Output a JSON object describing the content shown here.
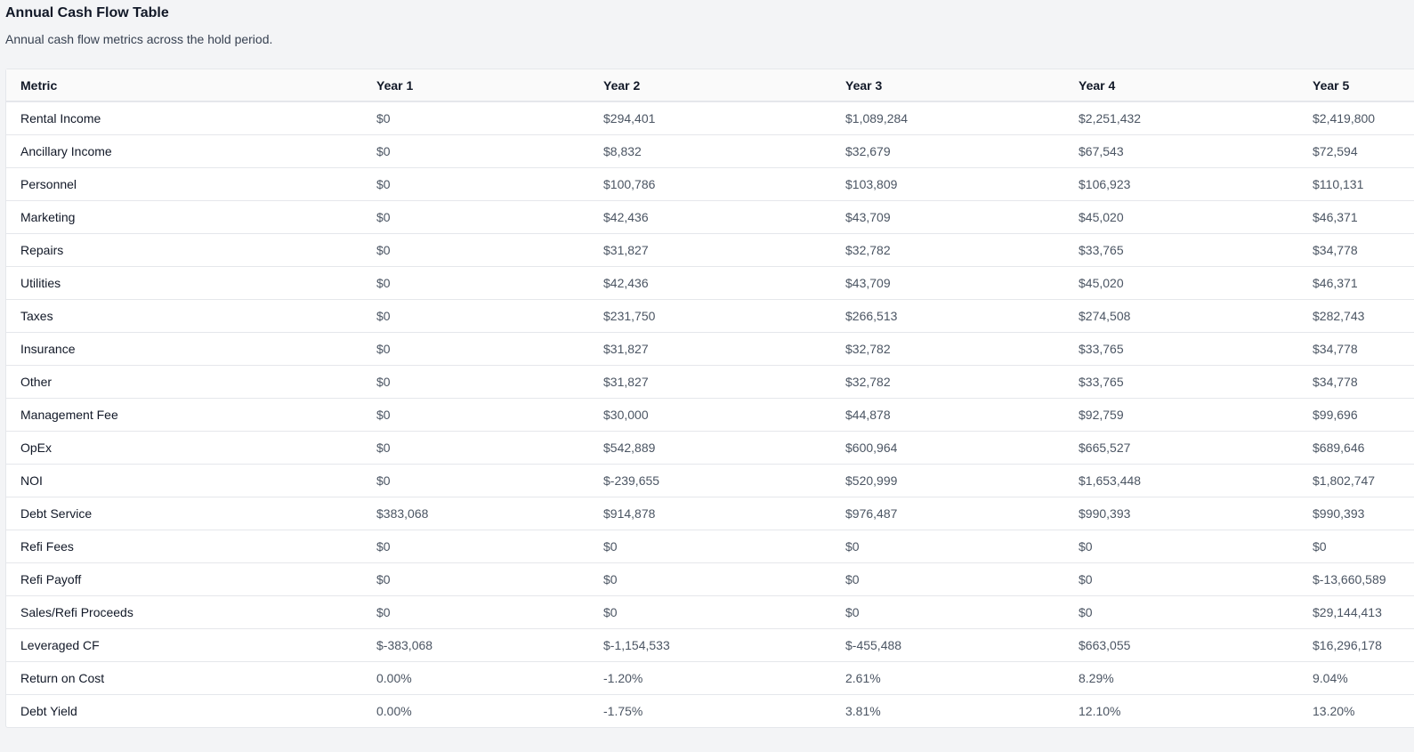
{
  "header": {
    "title": "Annual Cash Flow Table",
    "subtitle": "Annual cash flow metrics across the hold period."
  },
  "table": {
    "columns": [
      "Metric",
      "Year 1",
      "Year 2",
      "Year 3",
      "Year 4",
      "Year 5"
    ],
    "rows": [
      {
        "metric": "Rental Income",
        "values": [
          "$0",
          "$294,401",
          "$1,089,284",
          "$2,251,432",
          "$2,419,800"
        ]
      },
      {
        "metric": "Ancillary Income",
        "values": [
          "$0",
          "$8,832",
          "$32,679",
          "$67,543",
          "$72,594"
        ]
      },
      {
        "metric": "Personnel",
        "values": [
          "$0",
          "$100,786",
          "$103,809",
          "$106,923",
          "$110,131"
        ]
      },
      {
        "metric": "Marketing",
        "values": [
          "$0",
          "$42,436",
          "$43,709",
          "$45,020",
          "$46,371"
        ]
      },
      {
        "metric": "Repairs",
        "values": [
          "$0",
          "$31,827",
          "$32,782",
          "$33,765",
          "$34,778"
        ]
      },
      {
        "metric": "Utilities",
        "values": [
          "$0",
          "$42,436",
          "$43,709",
          "$45,020",
          "$46,371"
        ]
      },
      {
        "metric": "Taxes",
        "values": [
          "$0",
          "$231,750",
          "$266,513",
          "$274,508",
          "$282,743"
        ]
      },
      {
        "metric": "Insurance",
        "values": [
          "$0",
          "$31,827",
          "$32,782",
          "$33,765",
          "$34,778"
        ]
      },
      {
        "metric": "Other",
        "values": [
          "$0",
          "$31,827",
          "$32,782",
          "$33,765",
          "$34,778"
        ]
      },
      {
        "metric": "Management Fee",
        "values": [
          "$0",
          "$30,000",
          "$44,878",
          "$92,759",
          "$99,696"
        ]
      },
      {
        "metric": "OpEx",
        "values": [
          "$0",
          "$542,889",
          "$600,964",
          "$665,527",
          "$689,646"
        ]
      },
      {
        "metric": "NOI",
        "values": [
          "$0",
          "$-239,655",
          "$520,999",
          "$1,653,448",
          "$1,802,747"
        ]
      },
      {
        "metric": "Debt Service",
        "values": [
          "$383,068",
          "$914,878",
          "$976,487",
          "$990,393",
          "$990,393"
        ]
      },
      {
        "metric": "Refi Fees",
        "values": [
          "$0",
          "$0",
          "$0",
          "$0",
          "$0"
        ]
      },
      {
        "metric": "Refi Payoff",
        "values": [
          "$0",
          "$0",
          "$0",
          "$0",
          "$-13,660,589"
        ]
      },
      {
        "metric": "Sales/Refi Proceeds",
        "values": [
          "$0",
          "$0",
          "$0",
          "$0",
          "$29,144,413"
        ]
      },
      {
        "metric": "Leveraged CF",
        "values": [
          "$-383,068",
          "$-1,154,533",
          "$-455,488",
          "$663,055",
          "$16,296,178"
        ]
      },
      {
        "metric": "Return on Cost",
        "values": [
          "0.00%",
          "-1.20%",
          "2.61%",
          "8.29%",
          "9.04%"
        ]
      },
      {
        "metric": "Debt Yield",
        "values": [
          "0.00%",
          "-1.75%",
          "3.81%",
          "12.10%",
          "13.20%"
        ]
      }
    ]
  }
}
